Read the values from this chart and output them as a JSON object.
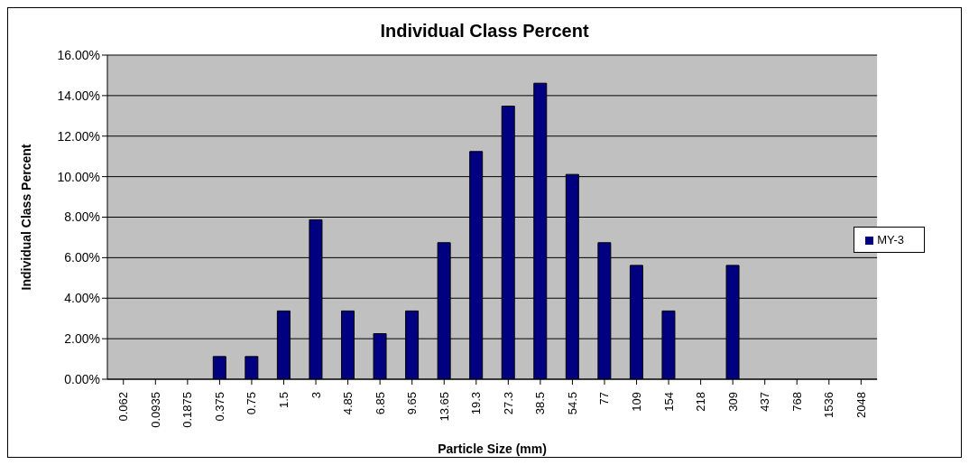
{
  "chart_data": {
    "type": "bar",
    "title": "Individual Class Percent",
    "xlabel": "Particle Size (mm)",
    "ylabel": "Individual Class Percent",
    "categories": [
      "0.062",
      "0.0935",
      "0.1875",
      "0.375",
      "0.75",
      "1.5",
      "3",
      "4.85",
      "6.85",
      "9.65",
      "13.65",
      "19.3",
      "27.3",
      "38.5",
      "54.5",
      "77",
      "109",
      "154",
      "218",
      "309",
      "437",
      "768",
      "1536",
      "2048"
    ],
    "series": [
      {
        "name": "MY-3",
        "color": "#000080",
        "values": [
          0,
          0,
          0,
          1.12,
          1.12,
          3.37,
          7.87,
          3.37,
          2.25,
          3.37,
          6.74,
          11.24,
          13.48,
          14.61,
          10.11,
          6.74,
          5.62,
          3.37,
          0,
          5.62,
          0,
          0,
          0,
          0
        ]
      }
    ],
    "ylim": [
      0,
      16
    ],
    "yticks": [
      {
        "value": 0,
        "label": "0.00%"
      },
      {
        "value": 2,
        "label": "2.00%"
      },
      {
        "value": 4,
        "label": "4.00%"
      },
      {
        "value": 6,
        "label": "6.00%"
      },
      {
        "value": 8,
        "label": "8.00%"
      },
      {
        "value": 10,
        "label": "10.00%"
      },
      {
        "value": 12,
        "label": "12.00%"
      },
      {
        "value": 14,
        "label": "14.00%"
      },
      {
        "value": 16,
        "label": "16.00%"
      }
    ],
    "grid": "y",
    "legend": "right"
  }
}
